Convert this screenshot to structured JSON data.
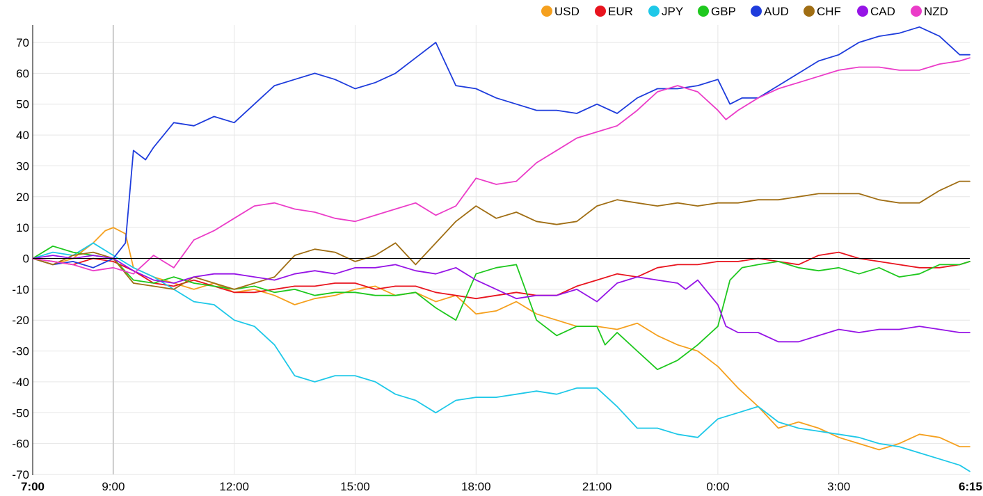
{
  "chart_data": {
    "type": "line",
    "title": "",
    "xlabel": "",
    "ylabel": "",
    "ylim": [
      -70,
      75
    ],
    "yticks": [
      70,
      60,
      50,
      40,
      30,
      20,
      10,
      0,
      -10,
      -20,
      -30,
      -40,
      -50,
      -60,
      -70
    ],
    "xlim": [
      0,
      23.25
    ],
    "x_tick_positions": [
      0,
      2,
      5,
      8,
      11,
      14,
      17,
      20,
      23.25
    ],
    "x_tick_labels": [
      "7:00",
      "9:00",
      "12:00",
      "15:00",
      "18:00",
      "21:00",
      "0:00",
      "3:00",
      "6:15"
    ],
    "x_tick_bold": [
      true,
      false,
      false,
      false,
      false,
      false,
      false,
      false,
      true
    ],
    "marker_x": 2,
    "zero_line": true,
    "legend_position": "top-right",
    "series": [
      {
        "name": "USD",
        "color": "#F5A01E",
        "x": [
          0,
          0.5,
          1,
          1.5,
          1.8,
          2,
          2.3,
          2.5,
          3,
          3.5,
          4,
          4.5,
          5,
          5.5,
          6,
          6.5,
          7,
          7.5,
          8,
          8.5,
          9,
          9.5,
          10,
          10.5,
          11,
          11.5,
          12,
          12.5,
          13,
          13.5,
          14,
          14.5,
          15,
          15.5,
          16,
          16.5,
          17,
          17.5,
          18,
          18.5,
          19,
          19.5,
          20,
          20.5,
          21,
          21.5,
          22,
          22.5,
          23,
          23.25
        ],
        "values": [
          0,
          -2,
          0,
          5,
          9,
          10,
          8,
          -3,
          -6,
          -8,
          -10,
          -8,
          -11,
          -10,
          -12,
          -15,
          -13,
          -12,
          -10,
          -9,
          -12,
          -11,
          -14,
          -12,
          -18,
          -17,
          -14,
          -18,
          -20,
          -22,
          -22,
          -23,
          -21,
          -25,
          -28,
          -30,
          -35,
          -42,
          -48,
          -55,
          -53,
          -55,
          -58,
          -60,
          -62,
          -60,
          -57,
          -58,
          -61,
          -61
        ]
      },
      {
        "name": "EUR",
        "color": "#E8141E",
        "x": [
          0,
          0.5,
          1,
          1.5,
          2,
          2.5,
          3,
          3.5,
          4,
          4.5,
          5,
          5.5,
          6,
          6.5,
          7,
          7.5,
          8,
          8.5,
          9,
          9.5,
          10,
          10.5,
          11,
          11.5,
          12,
          12.5,
          13,
          13.5,
          14,
          14.5,
          15,
          15.5,
          16,
          16.5,
          17,
          17.5,
          18,
          18.5,
          19,
          19.5,
          20,
          20.5,
          21,
          21.5,
          22,
          22.5,
          23,
          23.25
        ],
        "values": [
          0,
          -1,
          -2,
          0,
          -1,
          -4,
          -8,
          -9,
          -7,
          -9,
          -11,
          -11,
          -10,
          -9,
          -9,
          -8,
          -8,
          -10,
          -9,
          -9,
          -11,
          -12,
          -13,
          -12,
          -11,
          -12,
          -12,
          -9,
          -7,
          -5,
          -6,
          -3,
          -2,
          -2,
          -1,
          -1,
          0,
          -1,
          -2,
          1,
          2,
          0,
          -1,
          -2,
          -3,
          -3,
          -2,
          -1
        ]
      },
      {
        "name": "JPY",
        "color": "#1EC8E8",
        "x": [
          0,
          0.5,
          1,
          1.5,
          2,
          2.5,
          3,
          3.5,
          4,
          4.5,
          5,
          5.5,
          6,
          6.5,
          7,
          7.5,
          8,
          8.5,
          9,
          9.5,
          10,
          10.5,
          11,
          11.5,
          12,
          12.5,
          13,
          13.5,
          14,
          14.5,
          15,
          15.5,
          16,
          16.5,
          17,
          17.5,
          18,
          18.5,
          19,
          19.5,
          20,
          20.5,
          21,
          21.5,
          22,
          22.5,
          23,
          23.25
        ],
        "values": [
          0,
          2,
          1,
          5,
          1,
          -3,
          -6,
          -10,
          -14,
          -15,
          -20,
          -22,
          -28,
          -38,
          -40,
          -38,
          -38,
          -40,
          -44,
          -46,
          -50,
          -46,
          -45,
          -45,
          -44,
          -43,
          -44,
          -42,
          -42,
          -48,
          -55,
          -55,
          -57,
          -58,
          -52,
          -50,
          -48,
          -53,
          -55,
          -56,
          -57,
          -58,
          -60,
          -61,
          -63,
          -65,
          -67,
          -69
        ]
      },
      {
        "name": "GBP",
        "color": "#1EC81E",
        "x": [
          0,
          0.5,
          1,
          1.5,
          2,
          2.5,
          3,
          3.5,
          4,
          4.5,
          5,
          5.5,
          6,
          6.5,
          7,
          7.5,
          8,
          8.5,
          9,
          9.5,
          10,
          10.5,
          11,
          11.5,
          12,
          12.5,
          13,
          13.5,
          14,
          14.2,
          14.5,
          15,
          15.5,
          16,
          16.5,
          17,
          17.3,
          17.6,
          18,
          18.5,
          19,
          19.5,
          20,
          20.5,
          21,
          21.5,
          22,
          22.5,
          23,
          23.25
        ],
        "values": [
          0,
          4,
          2,
          1,
          0,
          -7,
          -8,
          -6,
          -8,
          -9,
          -10,
          -9,
          -11,
          -10,
          -12,
          -11,
          -11,
          -12,
          -12,
          -11,
          -16,
          -20,
          -5,
          -3,
          -2,
          -20,
          -25,
          -22,
          -22,
          -28,
          -24,
          -30,
          -36,
          -33,
          -28,
          -22,
          -7,
          -3,
          -2,
          -1,
          -3,
          -4,
          -3,
          -5,
          -3,
          -6,
          -5,
          -2,
          -2,
          -1
        ]
      },
      {
        "name": "AUD",
        "color": "#1E3CDC",
        "x": [
          0,
          0.5,
          1,
          1.5,
          2,
          2.3,
          2.5,
          2.8,
          3,
          3.5,
          4,
          4.5,
          5,
          5.5,
          6,
          6.5,
          7,
          7.5,
          8,
          8.5,
          9,
          9.5,
          10,
          10.5,
          11,
          11.5,
          12,
          12.5,
          13,
          13.5,
          14,
          14.5,
          15,
          15.5,
          16,
          16.5,
          17,
          17.3,
          17.6,
          18,
          18.5,
          19,
          19.5,
          20,
          20.5,
          21,
          21.5,
          22,
          22.5,
          23,
          23.25
        ],
        "values": [
          0,
          -2,
          -1,
          -3,
          0,
          5,
          35,
          32,
          36,
          44,
          43,
          46,
          44,
          50,
          56,
          58,
          60,
          58,
          55,
          57,
          60,
          65,
          70,
          56,
          55,
          52,
          50,
          48,
          48,
          47,
          50,
          47,
          52,
          55,
          55,
          56,
          58,
          50,
          52,
          52,
          56,
          60,
          64,
          66,
          70,
          72,
          73,
          75,
          72,
          66,
          66
        ]
      },
      {
        "name": "CHF",
        "color": "#A06E14",
        "x": [
          0,
          0.5,
          1,
          1.5,
          2,
          2.5,
          3,
          3.5,
          4,
          4.5,
          5,
          5.5,
          6,
          6.5,
          7,
          7.5,
          8,
          8.5,
          9,
          9.5,
          10,
          10.5,
          11,
          11.5,
          12,
          12.5,
          13,
          13.5,
          14,
          14.5,
          15,
          15.5,
          16,
          16.5,
          17,
          17.5,
          18,
          18.5,
          19,
          19.5,
          20,
          20.5,
          21,
          21.5,
          22,
          22.5,
          23,
          23.25
        ],
        "values": [
          0,
          -2,
          1,
          2,
          0,
          -8,
          -9,
          -10,
          -6,
          -8,
          -10,
          -8,
          -6,
          1,
          3,
          2,
          -1,
          1,
          5,
          -2,
          5,
          12,
          17,
          13,
          15,
          12,
          11,
          12,
          17,
          19,
          18,
          17,
          18,
          17,
          18,
          18,
          19,
          19,
          20,
          21,
          21,
          21,
          19,
          18,
          18,
          22,
          25,
          25
        ]
      },
      {
        "name": "CAD",
        "color": "#9614E6",
        "x": [
          0,
          0.5,
          1,
          1.5,
          2,
          2.5,
          3,
          3.5,
          4,
          4.5,
          5,
          5.5,
          6,
          6.5,
          7,
          7.5,
          8,
          8.5,
          9,
          9.5,
          10,
          10.5,
          11,
          11.5,
          12,
          12.5,
          13,
          13.5,
          14,
          14.5,
          15,
          15.5,
          16,
          16.2,
          16.5,
          17,
          17.2,
          17.5,
          18,
          18.5,
          19,
          19.5,
          20,
          20.5,
          21,
          21.5,
          22,
          22.5,
          23,
          23.25
        ],
        "values": [
          0,
          1,
          0,
          1,
          0,
          -4,
          -7,
          -8,
          -6,
          -5,
          -5,
          -6,
          -7,
          -5,
          -4,
          -5,
          -3,
          -3,
          -2,
          -4,
          -5,
          -3,
          -7,
          -10,
          -13,
          -12,
          -12,
          -10,
          -14,
          -8,
          -6,
          -7,
          -8,
          -10,
          -7,
          -15,
          -22,
          -24,
          -24,
          -27,
          -27,
          -25,
          -23,
          -24,
          -23,
          -23,
          -22,
          -23,
          -24,
          -24
        ]
      },
      {
        "name": "NZD",
        "color": "#EB3CC8",
        "x": [
          0,
          0.5,
          1,
          1.5,
          2,
          2.5,
          3,
          3.5,
          4,
          4.5,
          5,
          5.5,
          6,
          6.5,
          7,
          7.5,
          8,
          8.5,
          9,
          9.5,
          10,
          10.5,
          11,
          11.5,
          12,
          12.5,
          13,
          13.5,
          14,
          14.5,
          15,
          15.5,
          16,
          16.5,
          17,
          17.2,
          17.5,
          18,
          18.5,
          19,
          19.5,
          20,
          20.5,
          21,
          21.5,
          22,
          22.5,
          23,
          23.25
        ],
        "values": [
          0,
          -1,
          -2,
          -4,
          -3,
          -5,
          1,
          -3,
          6,
          9,
          13,
          17,
          18,
          16,
          15,
          13,
          12,
          14,
          16,
          18,
          14,
          17,
          26,
          24,
          25,
          31,
          35,
          39,
          41,
          43,
          48,
          54,
          56,
          54,
          48,
          45,
          48,
          52,
          55,
          57,
          59,
          61,
          62,
          62,
          61,
          61,
          63,
          64,
          65
        ]
      }
    ]
  }
}
